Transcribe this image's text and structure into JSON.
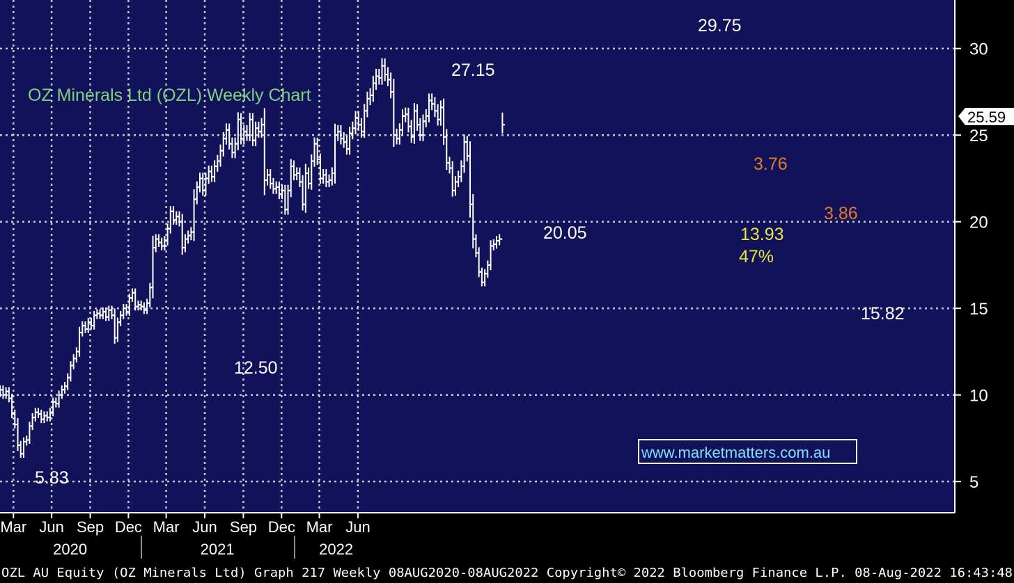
{
  "colors": {
    "plot_bg": "#12125a",
    "outer_bg": "#000000",
    "grid": "#c8c8c8",
    "bars": "#ffffff",
    "title": "#7fd17f",
    "orange": "#e07a2a",
    "yellow": "#e6e640",
    "watermark": "#7fe0ff"
  },
  "footer_text": "OZL AU Equity (OZ Minerals Ltd) Graph 217  Weekly 08AUG2020-08AUG2022  Copyright© 2022 Bloomberg Finance L.P.  08-Aug-2022 16:43:48",
  "watermark_text": "www.marketmatters.com.au",
  "chart_data": {
    "type": "ohlc",
    "title": "OZ Minerals Ltd (OZL) Weekly Chart",
    "xlabel": "",
    "ylabel": "",
    "ylim": [
      3.2,
      32.8
    ],
    "yticks": [
      5,
      10,
      15,
      20,
      25,
      30
    ],
    "grid": true,
    "x_start": "2020-01-20",
    "xticks": [
      {
        "date": "2020-03-02",
        "label": "Mar"
      },
      {
        "date": "2020-06-01",
        "label": "Jun"
      },
      {
        "date": "2020-09-01",
        "label": "Sep"
      },
      {
        "date": "2020-12-01",
        "label": "Dec"
      },
      {
        "date": "2021-03-01",
        "label": "Mar"
      },
      {
        "date": "2021-06-01",
        "label": "Jun"
      },
      {
        "date": "2021-09-01",
        "label": "Sep"
      },
      {
        "date": "2021-12-01",
        "label": "Dec"
      },
      {
        "date": "2022-03-01",
        "label": "Mar"
      },
      {
        "date": "2022-06-01",
        "label": "Jun"
      }
    ],
    "years": [
      {
        "label": "2020",
        "mid": "2020-07-15"
      },
      {
        "label": "2021",
        "mid": "2021-07-01"
      },
      {
        "label": "2022",
        "mid": "2022-04-10"
      }
    ],
    "year_boundaries": [
      "2021-01-01",
      "2022-01-01"
    ],
    "weekly_closes": [
      10.1,
      10.3,
      10.0,
      10.2,
      9.8,
      8.9,
      8.3,
      7.1,
      6.6,
      7.3,
      7.4,
      8.2,
      8.7,
      9.0,
      8.9,
      8.6,
      8.8,
      8.7,
      9.0,
      9.6,
      9.5,
      10.0,
      10.3,
      10.5,
      11.0,
      11.7,
      12.1,
      12.5,
      13.6,
      14.0,
      13.8,
      14.2,
      14.0,
      14.6,
      14.7,
      14.6,
      14.8,
      14.5,
      14.9,
      14.6,
      13.3,
      14.2,
      14.6,
      15.0,
      14.8,
      15.6,
      15.9,
      15.1,
      15.2,
      15.1,
      14.9,
      15.3,
      16.2,
      18.5,
      19.0,
      18.8,
      18.6,
      18.9,
      19.6,
      20.6,
      20.1,
      20.3,
      20.0,
      18.5,
      19.0,
      19.2,
      19.4,
      21.3,
      22.0,
      22.5,
      21.8,
      22.5,
      22.9,
      22.6,
      23.2,
      23.5,
      24.1,
      24.8,
      25.3,
      24.5,
      24.0,
      24.5,
      25.9,
      24.8,
      25.2,
      25.0,
      25.9,
      24.7,
      25.4,
      25.2,
      25.6,
      22.4,
      22.7,
      22.2,
      21.9,
      22.0,
      21.6,
      21.8,
      20.7,
      21.8,
      23.2,
      22.7,
      22.8,
      22.3,
      21.0,
      22.8,
      22.2,
      23.5,
      24.5,
      23.6,
      22.5,
      22.7,
      22.3,
      22.4,
      22.8,
      25.0,
      25.2,
      24.8,
      24.6,
      24.2,
      25.1,
      25.4,
      26.0,
      25.6,
      25.2,
      26.4,
      27.1,
      27.3,
      28.0,
      28.4,
      28.3,
      29.0,
      28.5,
      28.2,
      27.5,
      25.0,
      24.8,
      25.3,
      26.1,
      26.2,
      25.5,
      24.9,
      26.4,
      25.6,
      25.0,
      25.8,
      26.1,
      27.0,
      26.8,
      26.4,
      25.9,
      26.6,
      24.9,
      23.4,
      23.1,
      21.8,
      22.3,
      22.6,
      23.2,
      24.6,
      23.8,
      21.0,
      19.0,
      18.2,
      17.1,
      16.5,
      17.0,
      17.5,
      18.6,
      18.7,
      18.9,
      19.0,
      25.6
    ],
    "annotations": [
      {
        "text": "5.83",
        "color": "white"
      },
      {
        "text": "12.50",
        "color": "white"
      },
      {
        "text": "27.15",
        "color": "white"
      },
      {
        "text": "20.05",
        "color": "white"
      },
      {
        "text": "29.75",
        "color": "white"
      },
      {
        "text": "3.76",
        "color": "orange"
      },
      {
        "text": "3.86",
        "color": "orange"
      },
      {
        "text": "13.93",
        "color": "yellow"
      },
      {
        "text": "47%",
        "color": "yellow"
      },
      {
        "text": "15.82",
        "color": "white"
      }
    ],
    "last_price": "25.59"
  }
}
